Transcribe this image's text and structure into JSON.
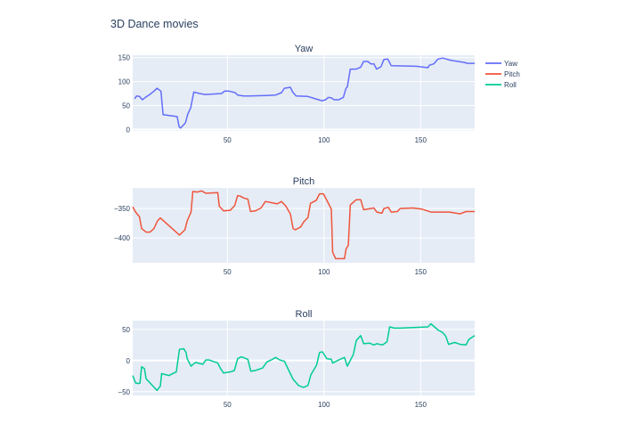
{
  "chart_data": [
    {
      "type": "line",
      "title": "Yaw",
      "series_name": "Yaw",
      "color": "#636efa",
      "xlim": [
        1,
        178
      ],
      "ylim": [
        -3,
        155
      ],
      "xticks": [
        50,
        100,
        150
      ],
      "yticks": [
        0,
        50,
        100,
        150
      ],
      "x": [
        2,
        3,
        4.5,
        6,
        7.6,
        9.8,
        12,
        13.6,
        15.6,
        16.7,
        24,
        25,
        25.8,
        28.3,
        29.5,
        31,
        32.6,
        35.6,
        38.6,
        47,
        48.5,
        50.8,
        54,
        55.3,
        58.3,
        61,
        70,
        75,
        78,
        79.5,
        82.6,
        83.8,
        85.6,
        91.7,
        94.7,
        99,
        100.8,
        102.3,
        103.8,
        105.3,
        107.6,
        110,
        111.4,
        112.1,
        113.6,
        116.7,
        119,
        120.5,
        122.7,
        124.2,
        125.8,
        127.2,
        129.5,
        131,
        133,
        134.8,
        147.7,
        153.8,
        154.5,
        156.8,
        159,
        161.4,
        166,
        172.7,
        174.2,
        178
      ],
      "y": [
        64,
        70,
        69,
        62,
        67,
        73,
        80,
        86,
        80,
        31,
        27,
        6,
        3,
        14,
        32,
        45,
        78,
        75,
        73,
        75,
        80,
        80,
        77,
        72,
        70,
        70,
        71,
        72,
        77,
        86,
        88,
        78,
        70,
        69,
        65,
        60,
        62,
        67,
        66,
        62,
        62,
        67,
        86,
        89,
        126,
        126,
        130,
        142,
        142,
        137,
        137,
        126,
        131,
        146,
        147,
        133,
        132,
        129,
        134,
        137,
        147,
        149,
        144,
        140,
        138,
        138
      ]
    },
    {
      "type": "line",
      "title": "Pitch",
      "series_name": "Pitch",
      "color": "#ef553b",
      "xlim": [
        1,
        178
      ],
      "ylim": [
        -442,
        -315
      ],
      "xticks": [
        50,
        100,
        150
      ],
      "yticks": [
        -350,
        -400
      ],
      "ytick_labels": [
        "−350",
        "−400"
      ],
      "x": [
        1,
        2.5,
        4.5,
        5.6,
        7.9,
        10,
        12,
        13.8,
        15.3,
        25.2,
        28,
        29.2,
        31.2,
        32.1,
        34.4,
        36.6,
        38.9,
        45,
        45.8,
        48,
        51.5,
        53.8,
        55.3,
        56.8,
        58.3,
        60.6,
        62,
        64.4,
        67.4,
        69.7,
        72.7,
        75.8,
        78,
        80.3,
        82.6,
        84,
        85.2,
        88,
        89.4,
        91.7,
        93,
        96,
        97.7,
        99.7,
        101.5,
        103.8,
        104.5,
        106,
        110.6,
        111.4,
        112.6,
        113.6,
        116.7,
        119,
        120.5,
        125.8,
        127.3,
        130,
        131,
        133.3,
        134.8,
        138,
        139.4,
        146,
        150.7,
        155.3,
        157.6,
        165,
        170.5,
        173.5,
        178
      ],
      "y": [
        -347,
        -356,
        -364,
        -384,
        -390,
        -390,
        -384,
        -371,
        -366,
        -395,
        -386,
        -371,
        -356,
        -321,
        -322,
        -320,
        -324,
        -323,
        -346,
        -354,
        -353,
        -345,
        -328,
        -329,
        -332,
        -334,
        -355,
        -354,
        -349,
        -338,
        -340,
        -342,
        -338,
        -346,
        -359,
        -384,
        -386,
        -381,
        -373,
        -365,
        -341,
        -336,
        -325,
        -325,
        -336,
        -351,
        -424,
        -435,
        -435,
        -419,
        -412,
        -344,
        -335,
        -335,
        -352,
        -349,
        -356,
        -358,
        -350,
        -348,
        -356,
        -355,
        -350,
        -349,
        -351,
        -356,
        -356,
        -356,
        -359,
        -355,
        -355
      ]
    },
    {
      "type": "line",
      "title": "Roll",
      "series_name": "Roll",
      "color": "#00cc96",
      "xlim": [
        1,
        178
      ],
      "ylim": [
        -56,
        64
      ],
      "xticks": [
        50,
        100,
        150
      ],
      "yticks": [
        -50,
        0,
        50
      ],
      "ytick_labels": [
        "−50",
        "0",
        "50"
      ],
      "x": [
        1,
        2.5,
        4,
        4.8,
        5.6,
        7.1,
        7.9,
        10,
        13.6,
        14.5,
        15.3,
        16,
        19.8,
        23.6,
        25.2,
        27.4,
        28.6,
        29.2,
        31.2,
        33.5,
        37.3,
        38.9,
        40.4,
        45,
        46.5,
        48,
        51.8,
        53.6,
        55.3,
        57.3,
        60.6,
        62.1,
        64.4,
        68.2,
        70.5,
        72.7,
        75,
        76.5,
        78,
        79.5,
        81.8,
        84,
        86.8,
        89.4,
        91.7,
        93.2,
        96.2,
        97.7,
        99.2,
        101.5,
        103.8,
        104.5,
        108.3,
        110.6,
        112.1,
        115.2,
        116.7,
        119,
        120.5,
        123.5,
        125.8,
        127.3,
        130.3,
        132.6,
        134,
        136.3,
        139.4,
        146,
        153.8,
        155.3,
        159,
        161.4,
        163,
        164.5,
        167.6,
        170.5,
        173.5,
        175,
        178
      ],
      "y": [
        -24,
        -36,
        -37,
        -36,
        -10,
        -13,
        -29,
        -36,
        -48,
        -44,
        -41,
        -21,
        -24,
        -18,
        18,
        19,
        13,
        3,
        -9,
        -3,
        -6,
        1,
        1,
        -4,
        -13,
        -20,
        -18,
        -16,
        3,
        6,
        2,
        -17,
        -16,
        -12,
        -2,
        1,
        5,
        2,
        0,
        -1,
        -16,
        -30,
        -40,
        -43,
        -40,
        -23,
        -7,
        13,
        14,
        3,
        2,
        -4,
        2,
        5,
        -9,
        10,
        32,
        40,
        27,
        28,
        25,
        27,
        25,
        30,
        54,
        52,
        52,
        53,
        54,
        59,
        49,
        45,
        39,
        26,
        29,
        26,
        25,
        34,
        40
      ]
    }
  ],
  "title": "3D Dance movies",
  "legend": {
    "placement": "top-right",
    "entries": [
      "Yaw",
      "Pitch",
      "Roll"
    ]
  }
}
